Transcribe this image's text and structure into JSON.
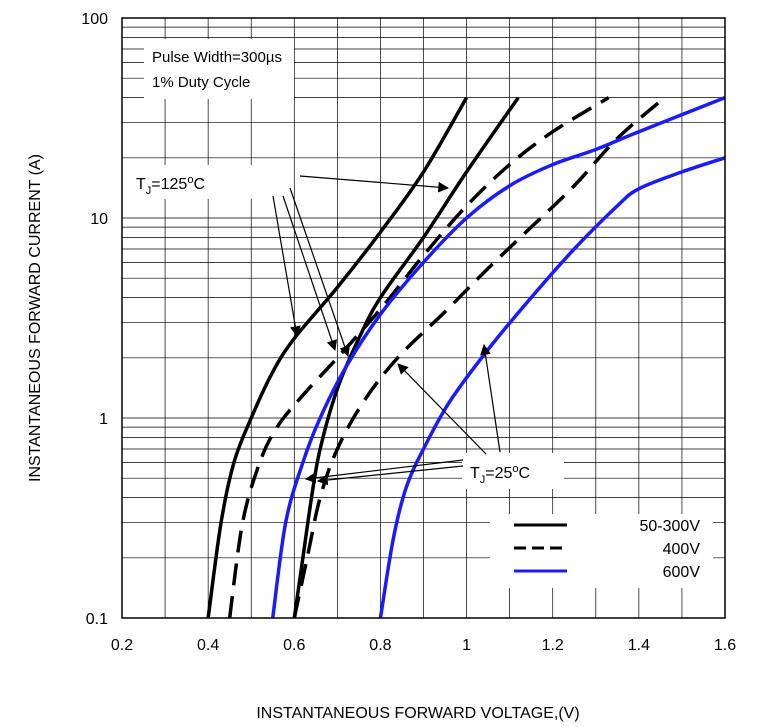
{
  "chart_data": {
    "type": "line",
    "title": "",
    "xlabel": "INSTANTANEOUS FORWARD VOLTAGE,(V)",
    "ylabel": "INSTANTANEOUS FORWARD CURRENT (A)",
    "xlim": [
      0.2,
      1.6
    ],
    "ylim": [
      0.1,
      100
    ],
    "yscale": "log",
    "grid": true,
    "x_ticks": [
      "0.2",
      "0.4",
      "0.6",
      "0.8",
      "1",
      "1.2",
      "1.4",
      "1.6"
    ],
    "y_ticks": [
      "0.1",
      "1",
      "10",
      "100"
    ],
    "annotations": {
      "conditions_line1": "Pulse Width=300µs",
      "conditions_line2": "1% Duty Cycle",
      "tj_high": {
        "prefix": "T",
        "sub": "J",
        "value": "=125",
        "sup": "o",
        "unit": "C"
      },
      "tj_low": {
        "prefix": "T",
        "sub": "J",
        "value": "=25",
        "sup": "o",
        "unit": "C"
      }
    },
    "legend": {
      "placement": "bottom-right",
      "entries": [
        "50-300V",
        "400V",
        "600V"
      ]
    },
    "series": [
      {
        "name": "50-300V",
        "condition": "125C",
        "style": "solid",
        "color": "#000000",
        "points": [
          [
            0.4,
            0.1
          ],
          [
            0.43,
            0.3
          ],
          [
            0.46,
            0.6
          ],
          [
            0.5,
            1.0
          ],
          [
            0.55,
            1.7
          ],
          [
            0.6,
            2.5
          ],
          [
            0.7,
            4.5
          ],
          [
            0.8,
            8.5
          ],
          [
            0.9,
            17
          ],
          [
            1.0,
            40
          ]
        ]
      },
      {
        "name": "50-300V",
        "condition": "25C",
        "style": "solid",
        "color": "#000000",
        "points": [
          [
            0.6,
            0.1
          ],
          [
            0.62,
            0.2
          ],
          [
            0.64,
            0.4
          ],
          [
            0.66,
            0.7
          ],
          [
            0.7,
            1.4
          ],
          [
            0.75,
            2.5
          ],
          [
            0.8,
            4.0
          ],
          [
            0.9,
            8.0
          ],
          [
            1.0,
            17
          ],
          [
            1.12,
            40
          ]
        ]
      },
      {
        "name": "400V",
        "condition": "125C",
        "style": "dashed",
        "color": "#000000",
        "points": [
          [
            0.45,
            0.1
          ],
          [
            0.48,
            0.3
          ],
          [
            0.52,
            0.6
          ],
          [
            0.56,
            0.9
          ],
          [
            0.62,
            1.3
          ],
          [
            0.7,
            2.0
          ],
          [
            0.8,
            3.5
          ],
          [
            0.9,
            6.5
          ],
          [
            1.0,
            11.5
          ],
          [
            1.1,
            18.5
          ],
          [
            1.2,
            27
          ],
          [
            1.33,
            40
          ]
        ]
      },
      {
        "name": "400V",
        "condition": "25C",
        "style": "dashed",
        "color": "#000000",
        "points": [
          [
            0.6,
            0.1
          ],
          [
            0.63,
            0.2
          ],
          [
            0.66,
            0.4
          ],
          [
            0.7,
            0.7
          ],
          [
            0.76,
            1.2
          ],
          [
            0.84,
            2.0
          ],
          [
            0.95,
            3.4
          ],
          [
            1.05,
            5.6
          ],
          [
            1.15,
            9.0
          ],
          [
            1.25,
            14.5
          ],
          [
            1.35,
            25
          ],
          [
            1.46,
            40
          ]
        ]
      },
      {
        "name": "600V",
        "condition": "125C",
        "style": "solid",
        "color": "#1a1aff",
        "points": [
          [
            0.55,
            0.1
          ],
          [
            0.58,
            0.3
          ],
          [
            0.62,
            0.6
          ],
          [
            0.66,
            1.0
          ],
          [
            0.72,
            1.8
          ],
          [
            0.8,
            3.3
          ],
          [
            0.9,
            6.0
          ],
          [
            1.0,
            10.0
          ],
          [
            1.1,
            14.5
          ],
          [
            1.2,
            18.5
          ],
          [
            1.3,
            22
          ],
          [
            1.4,
            27
          ],
          [
            1.6,
            40
          ]
        ]
      },
      {
        "name": "600V",
        "condition": "25C",
        "style": "solid",
        "color": "#1a1aff",
        "points": [
          [
            0.8,
            0.1
          ],
          [
            0.83,
            0.25
          ],
          [
            0.86,
            0.45
          ],
          [
            0.9,
            0.7
          ],
          [
            0.96,
            1.2
          ],
          [
            1.05,
            2.2
          ],
          [
            1.15,
            4.0
          ],
          [
            1.25,
            7.0
          ],
          [
            1.35,
            11.5
          ],
          [
            1.4,
            14
          ],
          [
            1.5,
            17
          ],
          [
            1.6,
            20
          ]
        ]
      }
    ]
  }
}
